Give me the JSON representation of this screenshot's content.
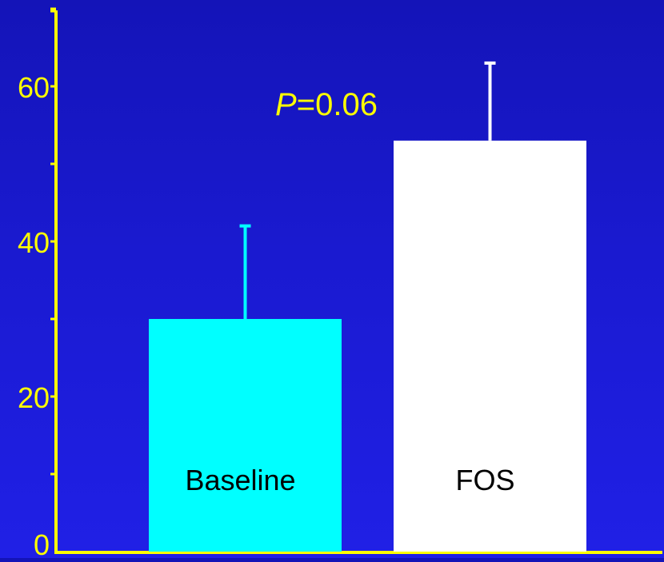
{
  "chart_data": {
    "type": "bar",
    "title": "",
    "xlabel": "",
    "ylabel": "",
    "categories": [
      "Baseline",
      "FOS"
    ],
    "values": [
      30,
      53
    ],
    "error_upper": [
      42,
      63
    ],
    "ylim": [
      0,
      70
    ],
    "yticks": [
      0,
      20,
      40,
      60
    ],
    "ytick_labels": [
      "0",
      "20",
      "40",
      "60"
    ],
    "grid": false,
    "legend": "none",
    "annotation": {
      "italic_part": "P",
      "rest": "=0.06"
    },
    "colors": {
      "background": "#1a1ad0",
      "axis": "#ffff00",
      "tick_label": "#ffff00",
      "annotation": "#ffff00",
      "bars": [
        "#00ffff",
        "#ffffff"
      ],
      "error_bars": [
        "#00ffff",
        "#ffffff"
      ],
      "bar_label": "#000000"
    }
  }
}
